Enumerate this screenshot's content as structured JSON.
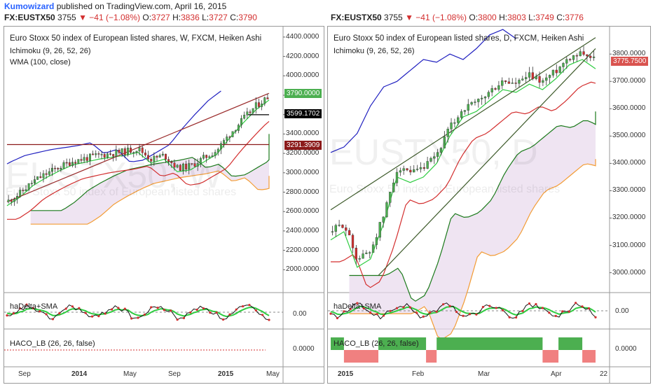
{
  "header": {
    "author": "Kumowizard",
    "published": "published on TradingView.com, April 16, 2015"
  },
  "left": {
    "symbol": "FX:EUSTX50",
    "last": "3755",
    "change": "▼ −41 (−1.08%)",
    "o_lbl": "O:",
    "o": "3727",
    "h_lbl": "H:",
    "h": "3836",
    "l_lbl": "L:",
    "l": "3727",
    "c_lbl": "C:",
    "c": "3790",
    "title": "Euro Stoxx 50 index of European listed shares, W, FXCM, Heiken Ashi",
    "ind1": "Ichimoku (9, 26, 52, 26)",
    "ind2": "WMA (100, close)",
    "watermark": "EUSTX50, W",
    "watermark_sub": "Euro Stoxx 50 index of European listed shares",
    "yticks": [
      "4400.0000",
      "4200.0000",
      "4000.0000",
      "3800.0000",
      "3600.0000",
      "3400.0000",
      "3200.0000",
      "3000.0000",
      "2800.0000",
      "2600.0000",
      "2400.0000",
      "2200.0000",
      "2000.0000"
    ],
    "tags": {
      "t1": "3790.0000",
      "t2": "3599.1702",
      "t3": "3291.3909"
    },
    "osc1": "haDelta+SMA",
    "osc1_zero": "0.00",
    "osc2": "HACO_LB (26, 26, false)",
    "osc2_zero": "0.0000",
    "xlabels": [
      "Sep",
      "2014",
      "May",
      "Sep",
      "2015",
      "May"
    ]
  },
  "right": {
    "symbol": "FX:EUSTX50",
    "last": "3755",
    "change": "▼ −41 (−1.08%)",
    "o_lbl": "O:",
    "o": "3800",
    "h_lbl": "H:",
    "h": "3803",
    "l_lbl": "L:",
    "l": "3749",
    "c_lbl": "C:",
    "c": "3776",
    "title": "Euro Stoxx 50 index of European listed shares, D, FXCM, Heiken Ashi",
    "ind1": "Ichimoku (9, 26, 52, 26)",
    "watermark": "EUSTX50, D",
    "watermark_sub": "Euro Stoxx 50 index of European listed shares",
    "yticks": [
      "3800.0000",
      "3700.0000",
      "3600.0000",
      "3500.0000",
      "3400.0000",
      "3300.0000",
      "3200.0000",
      "3100.0000",
      "3000.0000"
    ],
    "tags": {
      "t1": "3775.7500"
    },
    "osc1": "haDelta+SMA",
    "osc1_zero": "0.00",
    "osc2": "HACO_LB (26, 26, false)",
    "osc2_zero": "0.0000",
    "xlabels": [
      "2015",
      "Feb",
      "Mar",
      "Apr",
      "22"
    ]
  },
  "colors": {
    "up": "#4caf50",
    "down": "#d32f2f",
    "tenkan": "#2ecc40",
    "kijun": "#d32f2f",
    "chikou": "#2020c0",
    "spanA": "#1b7a1b",
    "spanB": "#f39c34",
    "cloud": "#e8d8ec",
    "trend": "#9b2d2d"
  },
  "chart_data": [
    {
      "type": "candlestick",
      "title": "Euro Stoxx 50 index of European listed shares, W, FXCM, Heiken Ashi",
      "ylim": [
        1800,
        4450
      ],
      "x": [
        "Sep 2013",
        "2014",
        "May 2014",
        "Sep 2014",
        "2015",
        "May 2015"
      ],
      "close_path": [
        {
          "t": 0.0,
          "v": 2700
        },
        {
          "t": 0.05,
          "v": 2790
        },
        {
          "t": 0.1,
          "v": 2910
        },
        {
          "t": 0.15,
          "v": 2990
        },
        {
          "t": 0.2,
          "v": 3060
        },
        {
          "t": 0.25,
          "v": 3120
        },
        {
          "t": 0.3,
          "v": 3150
        },
        {
          "t": 0.35,
          "v": 3180
        },
        {
          "t": 0.4,
          "v": 3200
        },
        {
          "t": 0.45,
          "v": 3220
        },
        {
          "t": 0.5,
          "v": 3250
        },
        {
          "t": 0.55,
          "v": 3140
        },
        {
          "t": 0.6,
          "v": 3180
        },
        {
          "t": 0.65,
          "v": 3050
        },
        {
          "t": 0.7,
          "v": 3070
        },
        {
          "t": 0.75,
          "v": 3150
        },
        {
          "t": 0.8,
          "v": 3230
        },
        {
          "t": 0.85,
          "v": 3400
        },
        {
          "t": 0.9,
          "v": 3550
        },
        {
          "t": 0.95,
          "v": 3690
        },
        {
          "t": 1.0,
          "v": 3790
        }
      ]
    },
    {
      "type": "candlestick",
      "title": "Euro Stoxx 50 index of European listed shares, D, FXCM, Heiken Ashi",
      "ylim": [
        2940,
        3880
      ],
      "x": [
        "2015",
        "Feb",
        "Mar",
        "Apr",
        "22"
      ],
      "close_path": [
        {
          "t": 0.0,
          "v": 3150
        },
        {
          "t": 0.05,
          "v": 3180
        },
        {
          "t": 0.1,
          "v": 3050
        },
        {
          "t": 0.15,
          "v": 3080
        },
        {
          "t": 0.2,
          "v": 3210
        },
        {
          "t": 0.25,
          "v": 3380
        },
        {
          "t": 0.3,
          "v": 3360
        },
        {
          "t": 0.35,
          "v": 3380
        },
        {
          "t": 0.4,
          "v": 3430
        },
        {
          "t": 0.45,
          "v": 3530
        },
        {
          "t": 0.5,
          "v": 3600
        },
        {
          "t": 0.55,
          "v": 3620
        },
        {
          "t": 0.6,
          "v": 3660
        },
        {
          "t": 0.65,
          "v": 3700
        },
        {
          "t": 0.7,
          "v": 3690
        },
        {
          "t": 0.75,
          "v": 3720
        },
        {
          "t": 0.8,
          "v": 3700
        },
        {
          "t": 0.85,
          "v": 3740
        },
        {
          "t": 0.9,
          "v": 3790
        },
        {
          "t": 0.95,
          "v": 3810
        },
        {
          "t": 1.0,
          "v": 3776
        }
      ]
    }
  ]
}
